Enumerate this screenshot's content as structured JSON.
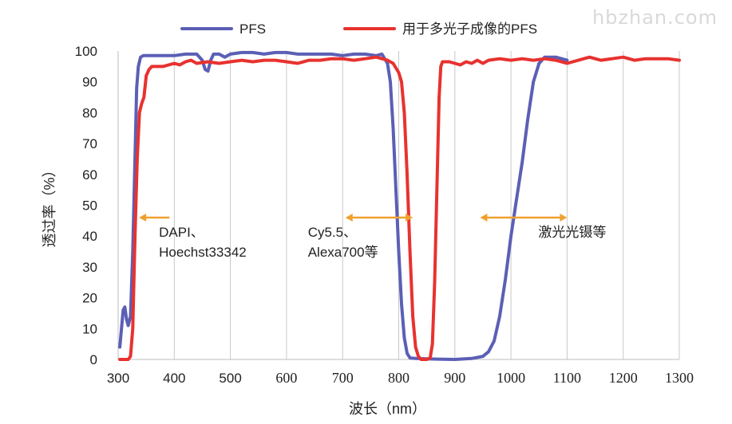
{
  "watermark": "hbzhan.com",
  "chart_data": {
    "type": "line",
    "title": "",
    "xlabel": "波长（nm）",
    "ylabel": "透过率（%）",
    "xlim": [
      300,
      1300
    ],
    "ylim": [
      0,
      100
    ],
    "x_ticks": [
      "300",
      "400",
      "500",
      "600",
      "700",
      "800",
      "900",
      "1000",
      "1100",
      "1200",
      "1300"
    ],
    "y_ticks": [
      "0",
      "10",
      "20",
      "30",
      "40",
      "50",
      "60",
      "70",
      "80",
      "90",
      "100"
    ],
    "grid": "vertical",
    "legend_position": "top",
    "series": [
      {
        "name": "PFS",
        "color": "#5b5fb5",
        "points": [
          [
            303,
            4
          ],
          [
            306,
            10
          ],
          [
            309,
            16
          ],
          [
            312,
            17
          ],
          [
            315,
            13
          ],
          [
            318,
            11
          ],
          [
            322,
            14
          ],
          [
            326,
            35
          ],
          [
            330,
            65
          ],
          [
            333,
            88
          ],
          [
            336,
            95
          ],
          [
            340,
            98
          ],
          [
            345,
            98.5
          ],
          [
            360,
            98.5
          ],
          [
            380,
            98.5
          ],
          [
            400,
            98.5
          ],
          [
            420,
            99
          ],
          [
            440,
            99
          ],
          [
            450,
            97
          ],
          [
            455,
            94
          ],
          [
            460,
            93.5
          ],
          [
            465,
            97
          ],
          [
            470,
            99
          ],
          [
            480,
            99
          ],
          [
            490,
            98
          ],
          [
            500,
            99
          ],
          [
            520,
            99.5
          ],
          [
            540,
            99.5
          ],
          [
            560,
            99
          ],
          [
            580,
            99.5
          ],
          [
            600,
            99.5
          ],
          [
            620,
            99
          ],
          [
            640,
            99
          ],
          [
            660,
            99
          ],
          [
            680,
            99
          ],
          [
            700,
            98.5
          ],
          [
            720,
            99
          ],
          [
            740,
            99
          ],
          [
            760,
            98.5
          ],
          [
            770,
            99
          ],
          [
            780,
            96
          ],
          [
            785,
            90
          ],
          [
            790,
            75
          ],
          [
            795,
            55
          ],
          [
            800,
            35
          ],
          [
            805,
            18
          ],
          [
            810,
            7
          ],
          [
            815,
            2
          ],
          [
            820,
            0.5
          ],
          [
            830,
            0.3
          ],
          [
            850,
            0.2
          ],
          [
            870,
            0.1
          ],
          [
            900,
            0
          ],
          [
            930,
            0.3
          ],
          [
            950,
            1
          ],
          [
            960,
            2.5
          ],
          [
            970,
            6
          ],
          [
            980,
            14
          ],
          [
            990,
            26
          ],
          [
            1000,
            40
          ],
          [
            1010,
            52
          ],
          [
            1020,
            64
          ],
          [
            1030,
            78
          ],
          [
            1040,
            90
          ],
          [
            1050,
            96
          ],
          [
            1060,
            98
          ],
          [
            1080,
            98
          ],
          [
            1100,
            97
          ]
        ]
      },
      {
        "name": "用于多光子成像的PFS",
        "color": "#e8322f",
        "points": [
          [
            303,
            0
          ],
          [
            310,
            0
          ],
          [
            318,
            0
          ],
          [
            322,
            1
          ],
          [
            326,
            10
          ],
          [
            330,
            40
          ],
          [
            334,
            65
          ],
          [
            338,
            80
          ],
          [
            342,
            83
          ],
          [
            346,
            85
          ],
          [
            350,
            92
          ],
          [
            355,
            94
          ],
          [
            360,
            95
          ],
          [
            380,
            95
          ],
          [
            400,
            96
          ],
          [
            410,
            95.5
          ],
          [
            420,
            96.5
          ],
          [
            430,
            97
          ],
          [
            440,
            96
          ],
          [
            460,
            96.5
          ],
          [
            480,
            96
          ],
          [
            500,
            96.5
          ],
          [
            520,
            97
          ],
          [
            540,
            96.5
          ],
          [
            560,
            97
          ],
          [
            580,
            97
          ],
          [
            600,
            96.5
          ],
          [
            620,
            96
          ],
          [
            640,
            97
          ],
          [
            660,
            97
          ],
          [
            680,
            97.5
          ],
          [
            700,
            97.5
          ],
          [
            720,
            97
          ],
          [
            740,
            97.5
          ],
          [
            760,
            98
          ],
          [
            780,
            97
          ],
          [
            790,
            96
          ],
          [
            800,
            93
          ],
          [
            805,
            90
          ],
          [
            810,
            80
          ],
          [
            815,
            60
          ],
          [
            820,
            35
          ],
          [
            825,
            14
          ],
          [
            830,
            4
          ],
          [
            835,
            1
          ],
          [
            840,
            0
          ],
          [
            850,
            0
          ],
          [
            856,
            0.5
          ],
          [
            860,
            5
          ],
          [
            864,
            25
          ],
          [
            868,
            55
          ],
          [
            872,
            85
          ],
          [
            875,
            95
          ],
          [
            878,
            96.5
          ],
          [
            890,
            96.5
          ],
          [
            900,
            96
          ],
          [
            910,
            95.5
          ],
          [
            920,
            96.5
          ],
          [
            930,
            96
          ],
          [
            940,
            97
          ],
          [
            950,
            96
          ],
          [
            960,
            97
          ],
          [
            980,
            97.5
          ],
          [
            1000,
            97
          ],
          [
            1020,
            97.5
          ],
          [
            1040,
            97
          ],
          [
            1060,
            97.5
          ],
          [
            1080,
            97
          ],
          [
            1100,
            96
          ],
          [
            1120,
            97
          ],
          [
            1140,
            98
          ],
          [
            1160,
            97
          ],
          [
            1180,
            97.5
          ],
          [
            1200,
            98
          ],
          [
            1220,
            97
          ],
          [
            1240,
            97.5
          ],
          [
            1260,
            97.5
          ],
          [
            1280,
            97.5
          ],
          [
            1300,
            97
          ]
        ]
      }
    ],
    "annotations": [
      {
        "lines": [
          "DAPI、",
          "Hoechst33342"
        ],
        "arrow_x": [
          340,
          400
        ],
        "arrow_y": 46
      },
      {
        "lines": [
          "Cy5.5、",
          "Alexa700等"
        ],
        "arrow_x": [
          705,
          825
        ],
        "arrow_y": 46
      },
      {
        "lines": [
          "激光光镊等"
        ],
        "arrow_x": [
          945,
          1100
        ],
        "arrow_y": 46
      }
    ],
    "annotation_color": "#f0a030"
  }
}
